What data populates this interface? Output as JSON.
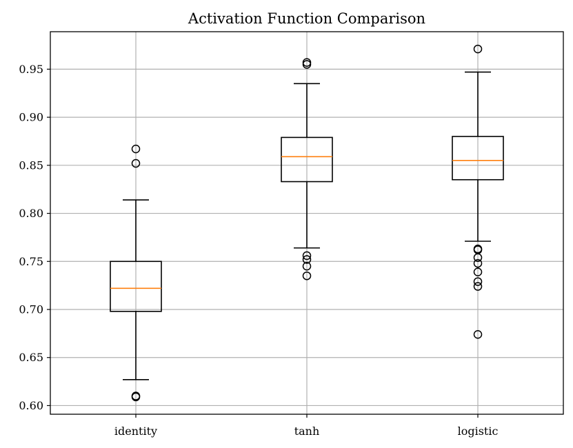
{
  "chart_data": {
    "type": "box",
    "title": "Activation Function Comparison",
    "xlabel": "",
    "ylabel": "",
    "categories": [
      "identity",
      "tanh",
      "logistic"
    ],
    "ylim": [
      0.591,
      0.989
    ],
    "yticks": [
      0.6,
      0.65,
      0.7,
      0.75,
      0.8,
      0.85,
      0.9,
      0.95
    ],
    "ytick_labels": [
      "0.60",
      "0.65",
      "0.70",
      "0.75",
      "0.80",
      "0.85",
      "0.90",
      "0.95"
    ],
    "grid": true,
    "median_color": "#ff7f0e",
    "boxes": [
      {
        "name": "identity",
        "q1": 0.698,
        "median": 0.722,
        "q3": 0.75,
        "whisker_low": 0.627,
        "whisker_high": 0.814,
        "fliers": [
          0.867,
          0.852,
          0.61,
          0.609
        ]
      },
      {
        "name": "tanh",
        "q1": 0.833,
        "median": 0.859,
        "q3": 0.879,
        "whisker_low": 0.764,
        "whisker_high": 0.935,
        "fliers": [
          0.957,
          0.955,
          0.756,
          0.752,
          0.745,
          0.735
        ]
      },
      {
        "name": "logistic",
        "q1": 0.835,
        "median": 0.855,
        "q3": 0.88,
        "whisker_low": 0.771,
        "whisker_high": 0.947,
        "fliers": [
          0.971,
          0.763,
          0.762,
          0.754,
          0.748,
          0.739,
          0.729,
          0.724,
          0.674
        ]
      }
    ]
  }
}
